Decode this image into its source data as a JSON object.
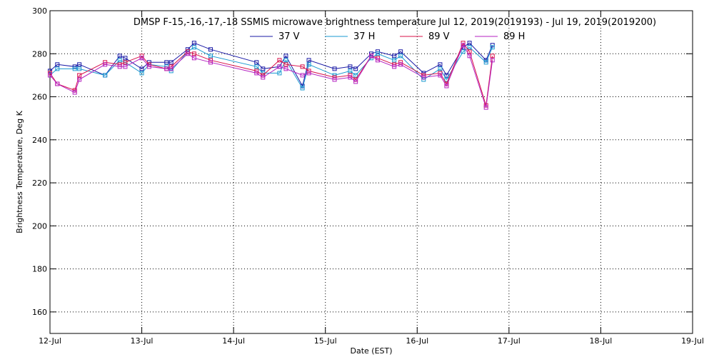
{
  "chart_data": {
    "type": "line",
    "title": "DMSP F-15,-16,-17,-18 SSMIS microwave brightness temperature Jul 12, 2019(2019193) - Jul 19, 2019(2019200)",
    "xlabel": "Date (EST)",
    "ylabel": "Brightness Temperature, Deg K",
    "xlim": [
      0,
      7
    ],
    "ylim": [
      150,
      300
    ],
    "x_ticks": [
      {
        "value": 0,
        "label": "12-Jul"
      },
      {
        "value": 1,
        "label": "13-Jul"
      },
      {
        "value": 2,
        "label": "14-Jul"
      },
      {
        "value": 3,
        "label": "15-Jul"
      },
      {
        "value": 4,
        "label": "16-Jul"
      },
      {
        "value": 5,
        "label": "17-Jul"
      },
      {
        "value": 6,
        "label": "18-Jul"
      },
      {
        "value": 7,
        "label": "19-Jul"
      }
    ],
    "y_ticks": [
      160,
      180,
      200,
      220,
      240,
      260,
      280,
      300
    ],
    "grid": true,
    "legend_position": "top-center",
    "series": [
      {
        "name": "37 V",
        "color": "#1a1aa6",
        "points": [
          [
            0,
            272
          ],
          [
            0.08,
            275
          ],
          [
            0.27,
            274
          ],
          [
            0.32,
            275
          ],
          [
            0.6,
            270
          ],
          [
            0.76,
            279
          ],
          [
            0.82,
            278
          ],
          [
            1.0,
            273
          ],
          [
            1.08,
            276
          ],
          [
            1.27,
            276
          ],
          [
            1.32,
            276
          ],
          [
            1.5,
            282
          ],
          [
            1.57,
            285
          ],
          [
            1.75,
            282
          ],
          [
            2.25,
            276
          ],
          [
            2.32,
            273
          ],
          [
            2.5,
            274
          ],
          [
            2.57,
            279
          ],
          [
            2.75,
            265
          ],
          [
            2.82,
            277
          ],
          [
            3.1,
            273
          ],
          [
            3.27,
            274
          ],
          [
            3.33,
            273
          ],
          [
            3.5,
            280
          ],
          [
            3.57,
            281
          ],
          [
            3.75,
            279
          ],
          [
            3.82,
            281
          ],
          [
            4.07,
            271
          ],
          [
            4.25,
            275
          ],
          [
            4.32,
            270
          ],
          [
            4.5,
            283
          ],
          [
            4.57,
            285
          ],
          [
            4.75,
            277
          ],
          [
            4.82,
            284
          ]
        ]
      },
      {
        "name": "37 H",
        "color": "#1a9ad0",
        "points": [
          [
            0,
            270
          ],
          [
            0.08,
            273
          ],
          [
            0.27,
            273
          ],
          [
            0.32,
            273
          ],
          [
            0.6,
            270
          ],
          [
            0.76,
            277
          ],
          [
            0.82,
            276
          ],
          [
            1.0,
            271
          ],
          [
            1.08,
            275
          ],
          [
            1.27,
            274
          ],
          [
            1.32,
            272
          ],
          [
            1.5,
            281
          ],
          [
            1.57,
            283
          ],
          [
            1.75,
            279
          ],
          [
            2.25,
            274
          ],
          [
            2.32,
            271
          ],
          [
            2.5,
            271
          ],
          [
            2.57,
            277
          ],
          [
            2.75,
            264
          ],
          [
            2.82,
            275
          ],
          [
            3.1,
            270
          ],
          [
            3.27,
            272
          ],
          [
            3.33,
            270
          ],
          [
            3.5,
            278
          ],
          [
            3.57,
            280
          ],
          [
            3.75,
            277
          ],
          [
            3.82,
            279
          ],
          [
            4.07,
            268
          ],
          [
            4.25,
            273
          ],
          [
            4.32,
            268
          ],
          [
            4.5,
            281
          ],
          [
            4.57,
            283
          ],
          [
            4.75,
            276
          ],
          [
            4.82,
            283
          ]
        ]
      },
      {
        "name": "89 V",
        "color": "#d8104a",
        "points": [
          [
            0,
            271
          ],
          [
            0.08,
            266
          ],
          [
            0.27,
            263
          ],
          [
            0.32,
            270
          ],
          [
            0.6,
            276
          ],
          [
            0.76,
            275
          ],
          [
            0.82,
            276
          ],
          [
            1.0,
            279
          ],
          [
            1.08,
            275
          ],
          [
            1.27,
            273
          ],
          [
            1.32,
            274
          ],
          [
            1.5,
            281
          ],
          [
            1.57,
            280
          ],
          [
            1.75,
            277
          ],
          [
            2.25,
            272
          ],
          [
            2.32,
            270
          ],
          [
            2.5,
            277
          ],
          [
            2.57,
            275
          ],
          [
            2.75,
            274
          ],
          [
            2.82,
            272
          ],
          [
            3.1,
            269
          ],
          [
            3.27,
            270
          ],
          [
            3.33,
            268
          ],
          [
            3.5,
            279
          ],
          [
            3.57,
            278
          ],
          [
            3.75,
            275
          ],
          [
            3.82,
            276
          ],
          [
            4.07,
            270
          ],
          [
            4.25,
            271
          ],
          [
            4.32,
            266
          ],
          [
            4.5,
            285
          ],
          [
            4.57,
            281
          ],
          [
            4.75,
            256
          ],
          [
            4.82,
            279
          ]
        ]
      },
      {
        "name": "89 H",
        "color": "#b522c0",
        "points": [
          [
            0,
            270
          ],
          [
            0.08,
            266
          ],
          [
            0.27,
            262
          ],
          [
            0.32,
            268
          ],
          [
            0.6,
            275
          ],
          [
            0.76,
            274
          ],
          [
            0.82,
            274
          ],
          [
            1.0,
            278
          ],
          [
            1.08,
            274
          ],
          [
            1.27,
            273
          ],
          [
            1.32,
            273
          ],
          [
            1.5,
            280
          ],
          [
            1.57,
            278
          ],
          [
            1.75,
            276
          ],
          [
            2.25,
            271
          ],
          [
            2.32,
            269
          ],
          [
            2.5,
            274
          ],
          [
            2.57,
            273
          ],
          [
            2.75,
            270
          ],
          [
            2.82,
            271
          ],
          [
            3.1,
            268
          ],
          [
            3.27,
            269
          ],
          [
            3.33,
            267
          ],
          [
            3.5,
            279
          ],
          [
            3.57,
            277
          ],
          [
            3.75,
            274
          ],
          [
            3.82,
            275
          ],
          [
            4.07,
            269
          ],
          [
            4.25,
            270
          ],
          [
            4.32,
            265
          ],
          [
            4.5,
            284
          ],
          [
            4.57,
            279
          ],
          [
            4.75,
            255
          ],
          [
            4.82,
            277
          ]
        ]
      }
    ]
  }
}
